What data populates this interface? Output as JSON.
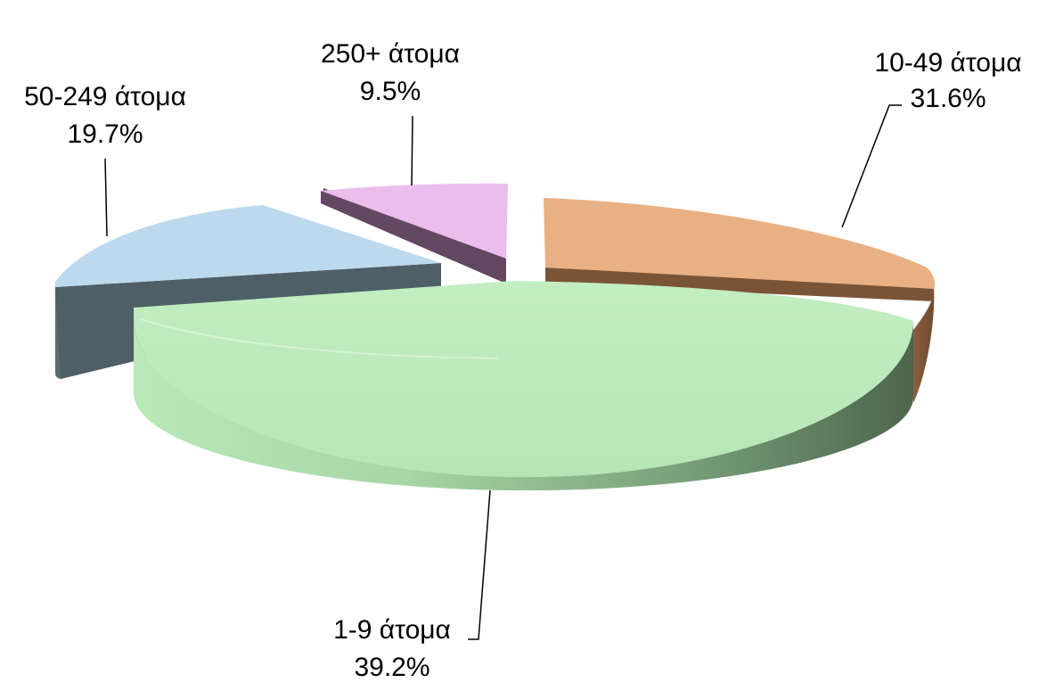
{
  "chart_data": {
    "type": "pie",
    "style": "3d-exploded",
    "title": "",
    "slices": [
      {
        "label": "10-49 άτομα",
        "value": 31.6,
        "display": "31.6%",
        "color": "#e8b083"
      },
      {
        "label": "1-9 άτομα",
        "value": 39.2,
        "display": "39.2%",
        "color": "#bdeabd"
      },
      {
        "label": "50-249 άτομα",
        "value": 19.7,
        "display": "19.7%",
        "color": "#bcd9ee"
      },
      {
        "label": "250+ άτομα",
        "value": 9.5,
        "display": "9.5%",
        "color": "#eabdec"
      }
    ]
  }
}
